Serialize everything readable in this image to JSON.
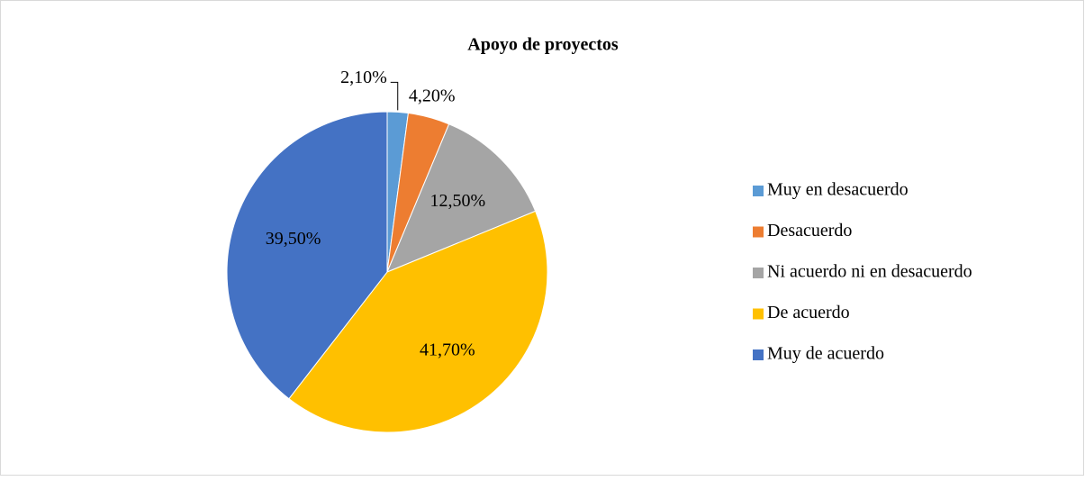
{
  "chart_data": {
    "type": "pie",
    "title": "Apoyo de proyectos",
    "categories": [
      "Muy en desacuerdo",
      "Desacuerdo",
      "Ni acuerdo ni en desacuerdo",
      "De acuerdo",
      "Muy de acuerdo"
    ],
    "values": [
      2.1,
      4.2,
      12.5,
      41.7,
      39.5
    ],
    "value_labels": [
      "2,10%",
      "4,20%",
      "12,50%",
      "41,70%",
      "39,50%"
    ],
    "colors": [
      "#5b9bd5",
      "#ed7d31",
      "#a5a5a5",
      "#ffc000",
      "#4472c4"
    ],
    "legend": "right"
  }
}
